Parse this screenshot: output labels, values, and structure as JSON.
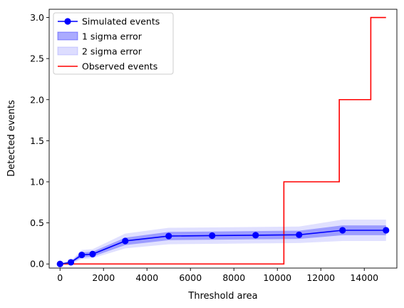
{
  "chart_data": {
    "type": "line",
    "title": "",
    "xlabel": "Threshold area",
    "ylabel": "Detected events",
    "xlim": [
      -500,
      15500
    ],
    "ylim": [
      -0.05,
      3.1
    ],
    "xticks": [
      0,
      2000,
      4000,
      6000,
      8000,
      10000,
      12000,
      14000
    ],
    "xtick_labels": [
      "0",
      "2000",
      "4000",
      "6000",
      "8000",
      "10000",
      "12000",
      "14000"
    ],
    "yticks": [
      0.0,
      0.5,
      1.0,
      1.5,
      2.0,
      2.5,
      3.0
    ],
    "ytick_labels": [
      "0.0",
      "0.5",
      "1.0",
      "1.5",
      "2.0",
      "2.5",
      "3.0"
    ],
    "grid": false,
    "legend_position": "top-left",
    "series": [
      {
        "name": "Simulated events",
        "kind": "line-marker",
        "color": "#0000ff",
        "x": [
          0,
          500,
          1000,
          1500,
          3000,
          5000,
          7000,
          9000,
          11000,
          13000,
          15000
        ],
        "y": [
          0.0,
          0.02,
          0.11,
          0.12,
          0.28,
          0.34,
          0.345,
          0.35,
          0.355,
          0.41,
          0.41
        ]
      },
      {
        "name": "1 sigma error",
        "kind": "band",
        "color": "#0000ff",
        "opacity": 0.3,
        "x": [
          0,
          500,
          1000,
          1500,
          3000,
          5000,
          7000,
          9000,
          11000,
          13000,
          15000
        ],
        "lower": [
          0.0,
          0.01,
          0.08,
          0.09,
          0.23,
          0.29,
          0.295,
          0.3,
          0.305,
          0.35,
          0.35
        ],
        "upper": [
          0.0,
          0.03,
          0.14,
          0.15,
          0.32,
          0.39,
          0.395,
          0.4,
          0.405,
          0.47,
          0.47
        ]
      },
      {
        "name": "2 sigma error",
        "kind": "band",
        "color": "#0000ff",
        "opacity": 0.12,
        "x": [
          0,
          500,
          1000,
          1500,
          3000,
          5000,
          7000,
          9000,
          11000,
          13000,
          15000
        ],
        "lower": [
          0.0,
          0.0,
          0.06,
          0.07,
          0.19,
          0.24,
          0.245,
          0.25,
          0.255,
          0.28,
          0.28
        ],
        "upper": [
          0.0,
          0.04,
          0.17,
          0.18,
          0.37,
          0.44,
          0.445,
          0.45,
          0.455,
          0.54,
          0.54
        ]
      },
      {
        "name": "Observed events",
        "kind": "step",
        "color": "#ff0000",
        "x": [
          0,
          10300,
          10300,
          12850,
          12850,
          14300,
          14300,
          15000
        ],
        "y": [
          0,
          0,
          1,
          1,
          2,
          2,
          3,
          3
        ]
      }
    ]
  }
}
